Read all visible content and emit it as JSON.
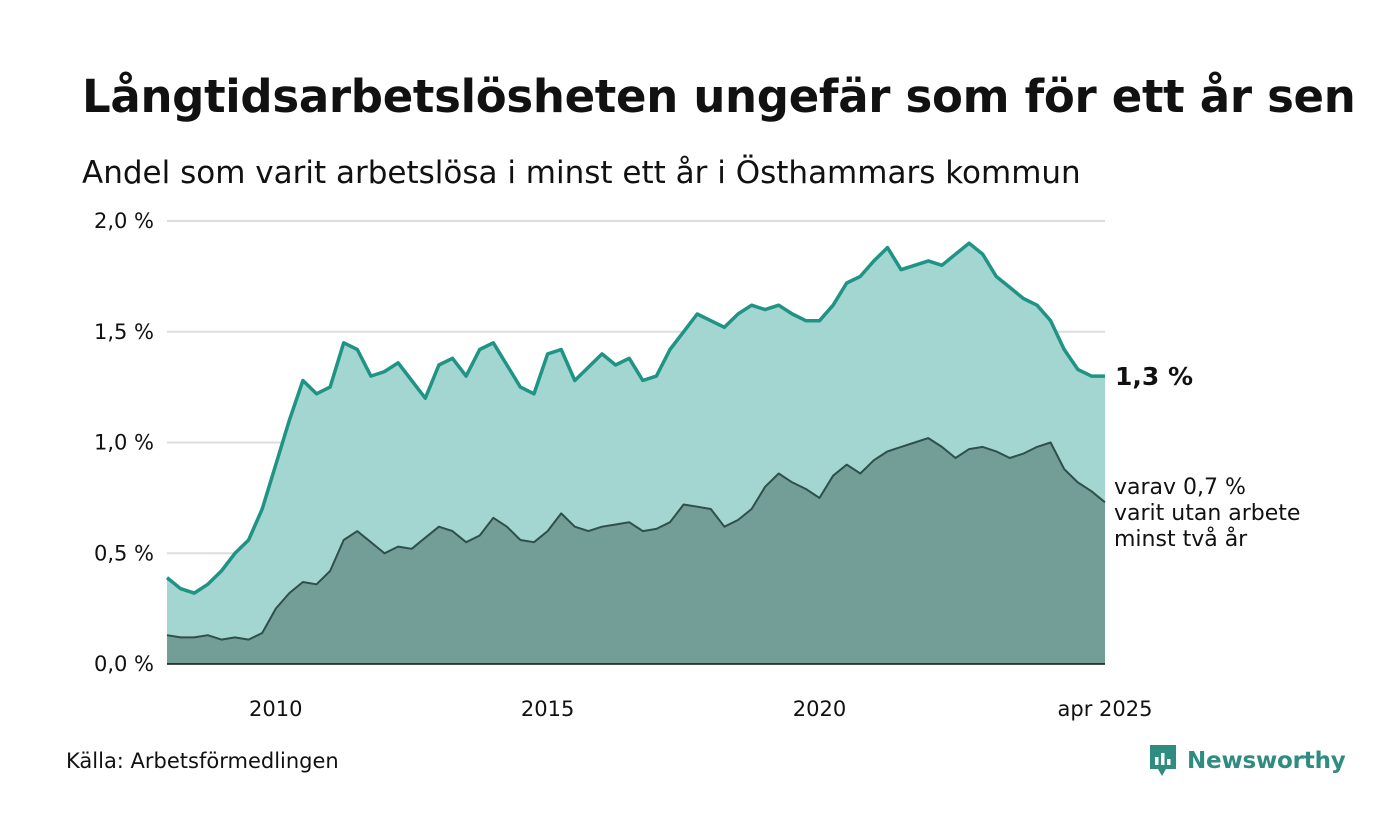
{
  "header": {
    "title": "Långtidsarbetslösheten ungefär som för ett år sen",
    "subtitle": "Andel som varit arbetslösa i minst ett år i Östhammars kommun"
  },
  "footer": {
    "source": "Källa: Arbetsförmedlingen",
    "brand": "Newsworthy"
  },
  "colors": {
    "series_main_line": "#1f9485",
    "series_main_fill": "#a3d6d1",
    "series_sub_line": "#2f4f4a",
    "series_sub_fill": "#739e97",
    "grid": "#dddddd",
    "brand": "#2f8c80"
  },
  "labels": {
    "main_end": "1,3 %",
    "sub_end_lines": [
      "varav 0,7 %",
      "varit utan arbete",
      "minst två år"
    ]
  },
  "chart_data": {
    "type": "area",
    "x_unit": "year (decimal, monthly)",
    "xlim": [
      2008.0,
      2025.25
    ],
    "ylim": [
      0,
      2.0
    ],
    "yticks": [
      0,
      0.5,
      1.0,
      1.5,
      2.0
    ],
    "ytick_labels": [
      "0,0 %",
      "0,5 %",
      "1,0 %",
      "1,5 %",
      "2,0 %"
    ],
    "xticks": [
      2010,
      2015,
      2020,
      2025.25
    ],
    "xtick_labels": [
      "2010",
      "2015",
      "2020",
      "apr 2025"
    ],
    "grid": true,
    "series": [
      {
        "points": [
          [
            2008.0,
            0.39
          ],
          [
            2008.25,
            0.34
          ],
          [
            2008.5,
            0.32
          ],
          [
            2008.75,
            0.36
          ],
          [
            2009.0,
            0.42
          ],
          [
            2009.25,
            0.5
          ],
          [
            2009.5,
            0.56
          ],
          [
            2009.75,
            0.7
          ],
          [
            2010.0,
            0.9
          ],
          [
            2010.25,
            1.1
          ],
          [
            2010.5,
            1.28
          ],
          [
            2010.75,
            1.22
          ],
          [
            2011.0,
            1.25
          ],
          [
            2011.25,
            1.45
          ],
          [
            2011.5,
            1.42
          ],
          [
            2011.75,
            1.3
          ],
          [
            2012.0,
            1.32
          ],
          [
            2012.25,
            1.36
          ],
          [
            2012.5,
            1.28
          ],
          [
            2012.75,
            1.2
          ],
          [
            2013.0,
            1.35
          ],
          [
            2013.25,
            1.38
          ],
          [
            2013.5,
            1.3
          ],
          [
            2013.75,
            1.42
          ],
          [
            2014.0,
            1.45
          ],
          [
            2014.25,
            1.35
          ],
          [
            2014.5,
            1.25
          ],
          [
            2014.75,
            1.22
          ],
          [
            2015.0,
            1.4
          ],
          [
            2015.25,
            1.42
          ],
          [
            2015.5,
            1.28
          ],
          [
            2015.75,
            1.34
          ],
          [
            2016.0,
            1.4
          ],
          [
            2016.25,
            1.35
          ],
          [
            2016.5,
            1.38
          ],
          [
            2016.75,
            1.28
          ],
          [
            2017.0,
            1.3
          ],
          [
            2017.25,
            1.42
          ],
          [
            2017.5,
            1.5
          ],
          [
            2017.75,
            1.58
          ],
          [
            2018.0,
            1.55
          ],
          [
            2018.25,
            1.52
          ],
          [
            2018.5,
            1.58
          ],
          [
            2018.75,
            1.62
          ],
          [
            2019.0,
            1.6
          ],
          [
            2019.25,
            1.62
          ],
          [
            2019.5,
            1.58
          ],
          [
            2019.75,
            1.55
          ],
          [
            2020.0,
            1.55
          ],
          [
            2020.25,
            1.62
          ],
          [
            2020.5,
            1.72
          ],
          [
            2020.75,
            1.75
          ],
          [
            2021.0,
            1.82
          ],
          [
            2021.25,
            1.88
          ],
          [
            2021.5,
            1.78
          ],
          [
            2021.75,
            1.8
          ],
          [
            2022.0,
            1.82
          ],
          [
            2022.25,
            1.8
          ],
          [
            2022.5,
            1.85
          ],
          [
            2022.75,
            1.9
          ],
          [
            2023.0,
            1.85
          ],
          [
            2023.25,
            1.75
          ],
          [
            2023.5,
            1.7
          ],
          [
            2023.75,
            1.65
          ],
          [
            2024.0,
            1.62
          ],
          [
            2024.25,
            1.55
          ],
          [
            2024.5,
            1.42
          ],
          [
            2024.75,
            1.33
          ],
          [
            2025.0,
            1.3
          ],
          [
            2025.25,
            1.3
          ]
        ]
      },
      {
        "points": [
          [
            2008.0,
            0.13
          ],
          [
            2008.25,
            0.12
          ],
          [
            2008.5,
            0.12
          ],
          [
            2008.75,
            0.13
          ],
          [
            2009.0,
            0.11
          ],
          [
            2009.25,
            0.12
          ],
          [
            2009.5,
            0.11
          ],
          [
            2009.75,
            0.14
          ],
          [
            2010.0,
            0.25
          ],
          [
            2010.25,
            0.32
          ],
          [
            2010.5,
            0.37
          ],
          [
            2010.75,
            0.36
          ],
          [
            2011.0,
            0.42
          ],
          [
            2011.25,
            0.56
          ],
          [
            2011.5,
            0.6
          ],
          [
            2011.75,
            0.55
          ],
          [
            2012.0,
            0.5
          ],
          [
            2012.25,
            0.53
          ],
          [
            2012.5,
            0.52
          ],
          [
            2012.75,
            0.57
          ],
          [
            2013.0,
            0.62
          ],
          [
            2013.25,
            0.6
          ],
          [
            2013.5,
            0.55
          ],
          [
            2013.75,
            0.58
          ],
          [
            2014.0,
            0.66
          ],
          [
            2014.25,
            0.62
          ],
          [
            2014.5,
            0.56
          ],
          [
            2014.75,
            0.55
          ],
          [
            2015.0,
            0.6
          ],
          [
            2015.25,
            0.68
          ],
          [
            2015.5,
            0.62
          ],
          [
            2015.75,
            0.6
          ],
          [
            2016.0,
            0.62
          ],
          [
            2016.25,
            0.63
          ],
          [
            2016.5,
            0.64
          ],
          [
            2016.75,
            0.6
          ],
          [
            2017.0,
            0.61
          ],
          [
            2017.25,
            0.64
          ],
          [
            2017.5,
            0.72
          ],
          [
            2017.75,
            0.71
          ],
          [
            2018.0,
            0.7
          ],
          [
            2018.25,
            0.62
          ],
          [
            2018.5,
            0.65
          ],
          [
            2018.75,
            0.7
          ],
          [
            2019.0,
            0.8
          ],
          [
            2019.25,
            0.86
          ],
          [
            2019.5,
            0.82
          ],
          [
            2019.75,
            0.79
          ],
          [
            2020.0,
            0.75
          ],
          [
            2020.25,
            0.85
          ],
          [
            2020.5,
            0.9
          ],
          [
            2020.75,
            0.86
          ],
          [
            2021.0,
            0.92
          ],
          [
            2021.25,
            0.96
          ],
          [
            2021.5,
            0.98
          ],
          [
            2021.75,
            1.0
          ],
          [
            2022.0,
            1.02
          ],
          [
            2022.25,
            0.98
          ],
          [
            2022.5,
            0.93
          ],
          [
            2022.75,
            0.97
          ],
          [
            2023.0,
            0.98
          ],
          [
            2023.25,
            0.96
          ],
          [
            2023.5,
            0.93
          ],
          [
            2023.75,
            0.95
          ],
          [
            2024.0,
            0.98
          ],
          [
            2024.25,
            1.0
          ],
          [
            2024.5,
            0.88
          ],
          [
            2024.75,
            0.82
          ],
          [
            2025.0,
            0.78
          ],
          [
            2025.25,
            0.73
          ]
        ]
      }
    ]
  }
}
